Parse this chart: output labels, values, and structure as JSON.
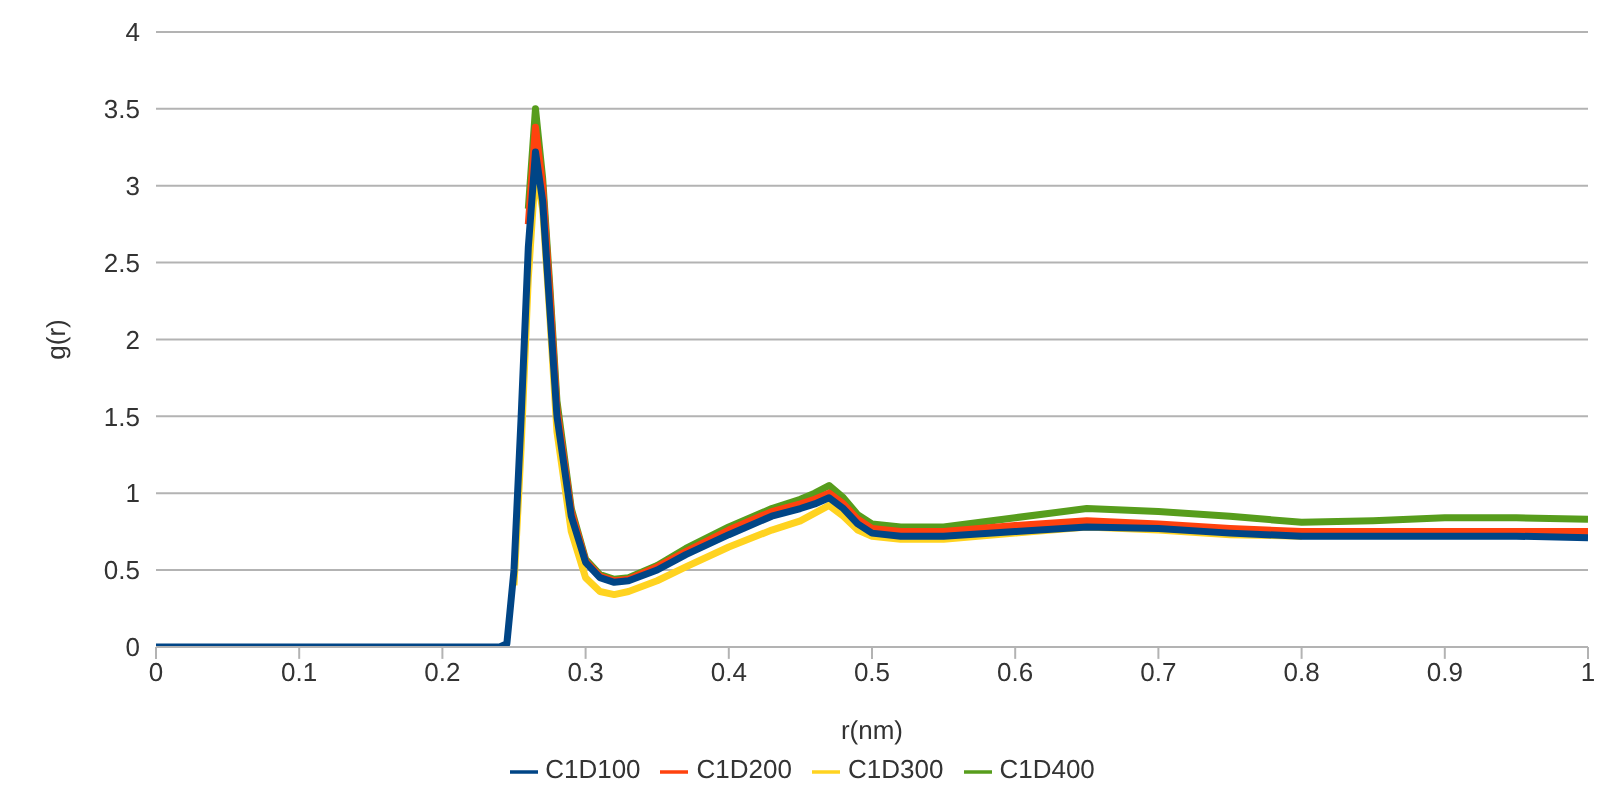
{
  "chart_data": {
    "type": "line",
    "xlabel": "r(nm)",
    "ylabel": "g(r)",
    "x": [
      0,
      0.23,
      0.24,
      0.245,
      0.25,
      0.255,
      0.26,
      0.265,
      0.27,
      0.275,
      0.28,
      0.29,
      0.3,
      0.31,
      0.32,
      0.33,
      0.35,
      0.37,
      0.4,
      0.43,
      0.45,
      0.46,
      0.47,
      0.48,
      0.49,
      0.5,
      0.52,
      0.55,
      0.6,
      0.65,
      0.7,
      0.75,
      0.8,
      0.85,
      0.9,
      0.95,
      1
    ],
    "series": [
      {
        "name": "C1D100",
        "color": "#004586",
        "values": [
          0,
          0,
          0,
          0.02,
          0.5,
          1.5,
          2.6,
          3.22,
          2.9,
          2.2,
          1.5,
          0.85,
          0.55,
          0.45,
          0.42,
          0.43,
          0.5,
          0.6,
          0.73,
          0.85,
          0.9,
          0.93,
          0.97,
          0.9,
          0.8,
          0.74,
          0.72,
          0.72,
          0.75,
          0.78,
          0.77,
          0.74,
          0.72,
          0.72,
          0.72,
          0.72,
          0.71
        ]
      },
      {
        "name": "C1D200",
        "color": "#ff420e",
        "values": [
          null,
          null,
          null,
          null,
          null,
          null,
          2.75,
          3.38,
          3.0,
          2.3,
          1.55,
          0.88,
          0.56,
          0.46,
          0.43,
          0.44,
          0.52,
          0.62,
          0.76,
          0.88,
          0.93,
          0.96,
          1.0,
          0.93,
          0.83,
          0.77,
          0.75,
          0.75,
          0.79,
          0.82,
          0.8,
          0.77,
          0.75,
          0.75,
          0.75,
          0.75,
          0.75
        ]
      },
      {
        "name": "C1D300",
        "color": "#ffd320",
        "values": [
          null,
          null,
          null,
          null,
          0.4,
          1.3,
          2.4,
          3.1,
          2.85,
          2.15,
          1.4,
          0.75,
          0.45,
          0.36,
          0.34,
          0.36,
          0.43,
          0.52,
          0.65,
          0.76,
          0.82,
          0.87,
          0.92,
          0.85,
          0.76,
          0.72,
          0.7,
          0.7,
          0.74,
          0.78,
          0.76,
          0.73,
          0.72,
          null,
          null,
          null,
          null
        ]
      },
      {
        "name": "C1D400",
        "color": "#579d1c",
        "values": [
          null,
          null,
          null,
          null,
          null,
          null,
          2.85,
          3.5,
          3.05,
          2.35,
          1.6,
          0.9,
          0.57,
          0.47,
          0.44,
          0.45,
          0.53,
          0.64,
          0.78,
          0.9,
          0.96,
          1.0,
          1.05,
          0.97,
          0.86,
          0.8,
          0.78,
          0.78,
          0.84,
          0.9,
          0.88,
          0.85,
          0.81,
          0.82,
          0.84,
          0.84,
          0.83
        ]
      }
    ],
    "xlim": [
      0,
      1
    ],
    "xticks": [
      0,
      0.1,
      0.2,
      0.3,
      0.4,
      0.5,
      0.6,
      0.7,
      0.8,
      0.9,
      1
    ],
    "ylim": [
      0,
      4
    ],
    "yticks": [
      0,
      0.5,
      1,
      1.5,
      2,
      2.5,
      3,
      3.5,
      4
    ],
    "grid": "y",
    "legend": "bottom",
    "marker": "none",
    "line_style": "solid"
  }
}
